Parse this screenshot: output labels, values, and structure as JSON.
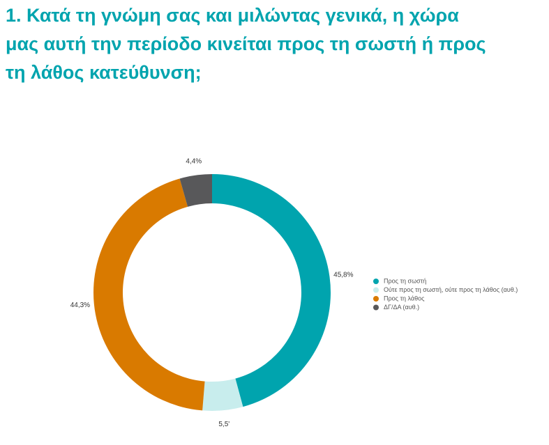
{
  "chart_data": {
    "type": "donut",
    "title": "1. Κατά τη γνώμη σας και μιλώντας γενικά, η χώρα μας αυτή την περίοδο κινείται προς τη σωστή ή προς τη λάθος κατεύθυνση;",
    "categories": [
      "Προς τη σωστή",
      "Ούτε προς τη σωστή, ούτε προς τη λάθος (αυθ.)",
      "Προς τη λάθος",
      "ΔΓ/ΔΑ (αυθ.)"
    ],
    "values": [
      45.8,
      5.5,
      44.3,
      4.4
    ],
    "value_labels": [
      "45,8%",
      "5,5'",
      "44,3%",
      "4,4%"
    ],
    "colors": [
      "#00a4ae",
      "#c8eded",
      "#d97a00",
      "#58585a"
    ],
    "legend": "right"
  }
}
